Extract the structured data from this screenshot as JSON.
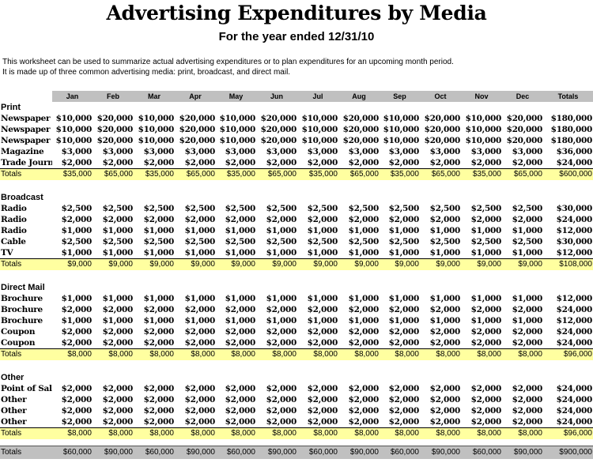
{
  "title": "Advertising Expenditures by Media",
  "subtitle": "For the year ended 12/31/10",
  "description": [
    "This worksheet can be used to summarize actual advertising expenditures or to plan expenditures for an upcoming month period.",
    "It is made up of three common advertising media:  print, broadcast, and direct mail."
  ],
  "columns": [
    "Jan",
    "Feb",
    "Mar",
    "Apr",
    "May",
    "Jun",
    "Jul",
    "Aug",
    "Sep",
    "Oct",
    "Nov",
    "Dec",
    "Totals"
  ],
  "sections": [
    {
      "name": "Print",
      "rows": [
        {
          "label": "Newspaper",
          "values": [
            "$10,000",
            "$20,000",
            "$10,000",
            "$20,000",
            "$10,000",
            "$20,000",
            "$10,000",
            "$20,000",
            "$10,000",
            "$20,000",
            "$10,000",
            "$20,000",
            "$180,000"
          ]
        },
        {
          "label": "Newspaper",
          "values": [
            "$10,000",
            "$20,000",
            "$10,000",
            "$20,000",
            "$10,000",
            "$20,000",
            "$10,000",
            "$20,000",
            "$10,000",
            "$20,000",
            "$10,000",
            "$20,000",
            "$180,000"
          ]
        },
        {
          "label": "Newspaper",
          "values": [
            "$10,000",
            "$20,000",
            "$10,000",
            "$20,000",
            "$10,000",
            "$20,000",
            "$10,000",
            "$20,000",
            "$10,000",
            "$20,000",
            "$10,000",
            "$20,000",
            "$180,000"
          ]
        },
        {
          "label": "Magazine",
          "values": [
            "$3,000",
            "$3,000",
            "$3,000",
            "$3,000",
            "$3,000",
            "$3,000",
            "$3,000",
            "$3,000",
            "$3,000",
            "$3,000",
            "$3,000",
            "$3,000",
            "$36,000"
          ]
        },
        {
          "label": "Trade Journal",
          "values": [
            "$2,000",
            "$2,000",
            "$2,000",
            "$2,000",
            "$2,000",
            "$2,000",
            "$2,000",
            "$2,000",
            "$2,000",
            "$2,000",
            "$2,000",
            "$2,000",
            "$24,000"
          ]
        }
      ],
      "totals_label": "Totals",
      "totals": [
        "$35,000",
        "$65,000",
        "$35,000",
        "$65,000",
        "$35,000",
        "$65,000",
        "$35,000",
        "$65,000",
        "$35,000",
        "$65,000",
        "$35,000",
        "$65,000",
        "$600,000"
      ]
    },
    {
      "name": "Broadcast",
      "rows": [
        {
          "label": "Radio",
          "values": [
            "$2,500",
            "$2,500",
            "$2,500",
            "$2,500",
            "$2,500",
            "$2,500",
            "$2,500",
            "$2,500",
            "$2,500",
            "$2,500",
            "$2,500",
            "$2,500",
            "$30,000"
          ]
        },
        {
          "label": "Radio",
          "values": [
            "$2,000",
            "$2,000",
            "$2,000",
            "$2,000",
            "$2,000",
            "$2,000",
            "$2,000",
            "$2,000",
            "$2,000",
            "$2,000",
            "$2,000",
            "$2,000",
            "$24,000"
          ]
        },
        {
          "label": "Radio",
          "values": [
            "$1,000",
            "$1,000",
            "$1,000",
            "$1,000",
            "$1,000",
            "$1,000",
            "$1,000",
            "$1,000",
            "$1,000",
            "$1,000",
            "$1,000",
            "$1,000",
            "$12,000"
          ]
        },
        {
          "label": "Cable",
          "values": [
            "$2,500",
            "$2,500",
            "$2,500",
            "$2,500",
            "$2,500",
            "$2,500",
            "$2,500",
            "$2,500",
            "$2,500",
            "$2,500",
            "$2,500",
            "$2,500",
            "$30,000"
          ]
        },
        {
          "label": "TV",
          "values": [
            "$1,000",
            "$1,000",
            "$1,000",
            "$1,000",
            "$1,000",
            "$1,000",
            "$1,000",
            "$1,000",
            "$1,000",
            "$1,000",
            "$1,000",
            "$1,000",
            "$12,000"
          ]
        }
      ],
      "totals_label": "Totals",
      "totals": [
        "$9,000",
        "$9,000",
        "$9,000",
        "$9,000",
        "$9,000",
        "$9,000",
        "$9,000",
        "$9,000",
        "$9,000",
        "$9,000",
        "$9,000",
        "$9,000",
        "$108,000"
      ]
    },
    {
      "name": "Direct Mail",
      "rows": [
        {
          "label": "Brochure",
          "values": [
            "$1,000",
            "$1,000",
            "$1,000",
            "$1,000",
            "$1,000",
            "$1,000",
            "$1,000",
            "$1,000",
            "$1,000",
            "$1,000",
            "$1,000",
            "$1,000",
            "$12,000"
          ]
        },
        {
          "label": "Brochure",
          "values": [
            "$2,000",
            "$2,000",
            "$2,000",
            "$2,000",
            "$2,000",
            "$2,000",
            "$2,000",
            "$2,000",
            "$2,000",
            "$2,000",
            "$2,000",
            "$2,000",
            "$24,000"
          ]
        },
        {
          "label": "Brochure",
          "values": [
            "$1,000",
            "$1,000",
            "$1,000",
            "$1,000",
            "$1,000",
            "$1,000",
            "$1,000",
            "$1,000",
            "$1,000",
            "$1,000",
            "$1,000",
            "$1,000",
            "$12,000"
          ]
        },
        {
          "label": "Coupon",
          "values": [
            "$2,000",
            "$2,000",
            "$2,000",
            "$2,000",
            "$2,000",
            "$2,000",
            "$2,000",
            "$2,000",
            "$2,000",
            "$2,000",
            "$2,000",
            "$2,000",
            "$24,000"
          ]
        },
        {
          "label": "Coupon",
          "values": [
            "$2,000",
            "$2,000",
            "$2,000",
            "$2,000",
            "$2,000",
            "$2,000",
            "$2,000",
            "$2,000",
            "$2,000",
            "$2,000",
            "$2,000",
            "$2,000",
            "$24,000"
          ]
        }
      ],
      "totals_label": "Totals",
      "totals": [
        "$8,000",
        "$8,000",
        "$8,000",
        "$8,000",
        "$8,000",
        "$8,000",
        "$8,000",
        "$8,000",
        "$8,000",
        "$8,000",
        "$8,000",
        "$8,000",
        "$96,000"
      ]
    },
    {
      "name": "Other",
      "rows": [
        {
          "label": "Point of Sale",
          "values": [
            "$2,000",
            "$2,000",
            "$2,000",
            "$2,000",
            "$2,000",
            "$2,000",
            "$2,000",
            "$2,000",
            "$2,000",
            "$2,000",
            "$2,000",
            "$2,000",
            "$24,000"
          ]
        },
        {
          "label": "Other",
          "values": [
            "$2,000",
            "$2,000",
            "$2,000",
            "$2,000",
            "$2,000",
            "$2,000",
            "$2,000",
            "$2,000",
            "$2,000",
            "$2,000",
            "$2,000",
            "$2,000",
            "$24,000"
          ]
        },
        {
          "label": "Other",
          "values": [
            "$2,000",
            "$2,000",
            "$2,000",
            "$2,000",
            "$2,000",
            "$2,000",
            "$2,000",
            "$2,000",
            "$2,000",
            "$2,000",
            "$2,000",
            "$2,000",
            "$24,000"
          ]
        },
        {
          "label": "Other",
          "values": [
            "$2,000",
            "$2,000",
            "$2,000",
            "$2,000",
            "$2,000",
            "$2,000",
            "$2,000",
            "$2,000",
            "$2,000",
            "$2,000",
            "$2,000",
            "$2,000",
            "$24,000"
          ]
        }
      ],
      "totals_label": "Totals",
      "totals": [
        "$8,000",
        "$8,000",
        "$8,000",
        "$8,000",
        "$8,000",
        "$8,000",
        "$8,000",
        "$8,000",
        "$8,000",
        "$8,000",
        "$8,000",
        "$8,000",
        "$96,000"
      ]
    }
  ],
  "grand_totals_label": "Totals",
  "grand_totals": [
    "$60,000",
    "$90,000",
    "$60,000",
    "$90,000",
    "$60,000",
    "$90,000",
    "$60,000",
    "$90,000",
    "$60,000",
    "$90,000",
    "$60,000",
    "$90,000",
    "$900,000"
  ],
  "colors": {
    "header_background": "#c0c0c0",
    "totals_background": "#ffffa0",
    "grand_totals_background": "#c0c0c0"
  }
}
